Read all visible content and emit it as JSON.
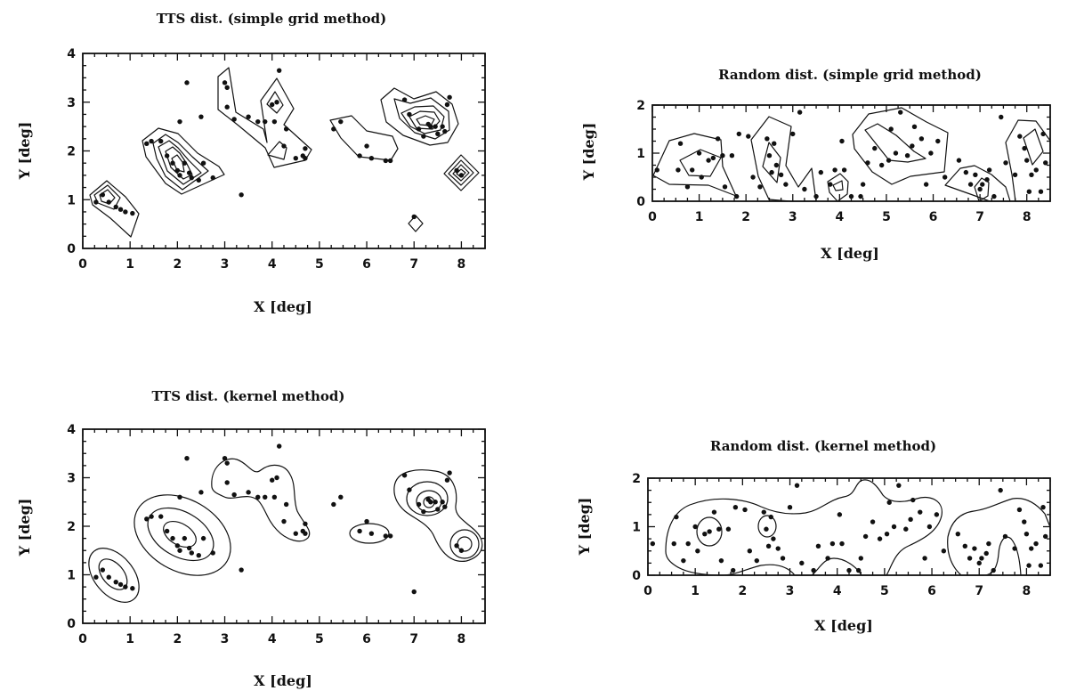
{
  "chart_data": [
    {
      "id": "tts-grid",
      "type": "scatter",
      "title": "TTS dist. (simple grid method)",
      "xlabel": "X [deg]",
      "ylabel": "Y [deg]",
      "xlim": [
        0,
        8.5
      ],
      "ylim": [
        0,
        4
      ],
      "xticks": [
        0,
        1,
        2,
        3,
        4,
        5,
        6,
        7,
        8
      ],
      "yticks": [
        0,
        1,
        2,
        3,
        4
      ],
      "points": [
        [
          0.28,
          0.95
        ],
        [
          0.42,
          1.1
        ],
        [
          0.55,
          0.95
        ],
        [
          0.7,
          0.85
        ],
        [
          0.8,
          0.8
        ],
        [
          0.9,
          0.75
        ],
        [
          1.05,
          0.72
        ],
        [
          1.35,
          2.15
        ],
        [
          1.45,
          2.2
        ],
        [
          1.65,
          2.2
        ],
        [
          1.78,
          1.9
        ],
        [
          1.9,
          1.75
        ],
        [
          2.0,
          1.6
        ],
        [
          2.05,
          1.5
        ],
        [
          2.15,
          1.75
        ],
        [
          2.25,
          1.55
        ],
        [
          2.3,
          1.45
        ],
        [
          2.45,
          1.4
        ],
        [
          2.55,
          1.75
        ],
        [
          2.75,
          1.45
        ],
        [
          2.05,
          2.6
        ],
        [
          2.2,
          3.4
        ],
        [
          2.5,
          2.7
        ],
        [
          3.0,
          3.4
        ],
        [
          3.05,
          3.3
        ],
        [
          3.05,
          2.9
        ],
        [
          3.2,
          2.65
        ],
        [
          3.35,
          1.1
        ],
        [
          3.5,
          2.7
        ],
        [
          3.7,
          2.6
        ],
        [
          3.85,
          2.6
        ],
        [
          4.0,
          2.95
        ],
        [
          4.05,
          2.6
        ],
        [
          4.1,
          3.0
        ],
        [
          4.15,
          3.65
        ],
        [
          4.25,
          2.1
        ],
        [
          4.3,
          2.45
        ],
        [
          4.5,
          1.85
        ],
        [
          4.65,
          1.9
        ],
        [
          4.7,
          2.05
        ],
        [
          4.7,
          1.85
        ],
        [
          5.3,
          2.45
        ],
        [
          5.45,
          2.6
        ],
        [
          5.85,
          1.9
        ],
        [
          6.0,
          2.1
        ],
        [
          6.1,
          1.85
        ],
        [
          6.4,
          1.8
        ],
        [
          6.5,
          1.8
        ],
        [
          6.8,
          3.05
        ],
        [
          6.9,
          2.75
        ],
        [
          7.0,
          0.65
        ],
        [
          7.1,
          2.45
        ],
        [
          7.2,
          2.3
        ],
        [
          7.3,
          2.55
        ],
        [
          7.35,
          2.5
        ],
        [
          7.45,
          2.5
        ],
        [
          7.5,
          2.35
        ],
        [
          7.6,
          2.5
        ],
        [
          7.65,
          2.4
        ],
        [
          7.7,
          2.95
        ],
        [
          7.75,
          3.1
        ],
        [
          7.9,
          1.6
        ],
        [
          8.0,
          1.5
        ]
      ]
    },
    {
      "id": "random-grid",
      "type": "scatter",
      "title": "Random dist. (simple grid method)",
      "xlabel": "X [deg]",
      "ylabel": "Y [deg]",
      "xlim": [
        0,
        8.5
      ],
      "ylim": [
        0,
        2
      ],
      "xticks": [
        0,
        1,
        2,
        3,
        4,
        5,
        6,
        7,
        8
      ],
      "yticks": [
        0,
        1,
        2
      ],
      "points": [
        [
          0.1,
          0.65
        ],
        [
          0.55,
          0.65
        ],
        [
          0.6,
          1.2
        ],
        [
          0.75,
          0.3
        ],
        [
          0.85,
          0.65
        ],
        [
          1.0,
          1.0
        ],
        [
          1.05,
          0.5
        ],
        [
          1.2,
          0.85
        ],
        [
          1.3,
          0.9
        ],
        [
          1.4,
          1.3
        ],
        [
          1.5,
          0.95
        ],
        [
          1.55,
          0.3
        ],
        [
          1.7,
          0.95
        ],
        [
          1.8,
          0.1
        ],
        [
          1.85,
          1.4
        ],
        [
          2.05,
          1.35
        ],
        [
          2.15,
          0.5
        ],
        [
          2.3,
          0.3
        ],
        [
          2.45,
          1.3
        ],
        [
          2.5,
          0.95
        ],
        [
          2.55,
          0.6
        ],
        [
          2.6,
          1.2
        ],
        [
          2.65,
          0.75
        ],
        [
          2.75,
          0.55
        ],
        [
          2.85,
          0.35
        ],
        [
          3.0,
          1.4
        ],
        [
          3.15,
          1.85
        ],
        [
          3.25,
          0.25
        ],
        [
          3.5,
          0.1
        ],
        [
          3.6,
          0.6
        ],
        [
          3.8,
          0.35
        ],
        [
          3.9,
          0.65
        ],
        [
          4.05,
          1.25
        ],
        [
          4.1,
          0.65
        ],
        [
          4.25,
          0.1
        ],
        [
          4.45,
          0.1
        ],
        [
          4.5,
          0.35
        ],
        [
          4.6,
          0.8
        ],
        [
          4.75,
          1.1
        ],
        [
          4.9,
          0.75
        ],
        [
          5.05,
          0.85
        ],
        [
          5.1,
          1.5
        ],
        [
          5.2,
          1.0
        ],
        [
          5.3,
          1.85
        ],
        [
          5.45,
          0.95
        ],
        [
          5.55,
          1.15
        ],
        [
          5.6,
          1.55
        ],
        [
          5.75,
          1.3
        ],
        [
          5.85,
          0.35
        ],
        [
          5.95,
          1.0
        ],
        [
          6.1,
          1.25
        ],
        [
          6.25,
          0.5
        ],
        [
          6.55,
          0.85
        ],
        [
          6.7,
          0.6
        ],
        [
          6.8,
          0.35
        ],
        [
          6.9,
          0.55
        ],
        [
          7.0,
          0.25
        ],
        [
          7.05,
          0.35
        ],
        [
          7.15,
          0.45
        ],
        [
          7.2,
          0.65
        ],
        [
          7.3,
          0.1
        ],
        [
          7.45,
          1.75
        ],
        [
          7.55,
          0.8
        ],
        [
          7.75,
          0.55
        ],
        [
          7.85,
          1.35
        ],
        [
          7.95,
          1.1
        ],
        [
          8.0,
          0.85
        ],
        [
          8.05,
          0.2
        ],
        [
          8.1,
          0.55
        ],
        [
          8.2,
          0.65
        ],
        [
          8.3,
          0.2
        ],
        [
          8.35,
          1.4
        ],
        [
          8.4,
          0.8
        ]
      ]
    },
    {
      "id": "tts-kernel",
      "type": "scatter",
      "title": "TTS dist. (kernel method)",
      "xlabel": "X [deg]",
      "ylabel": "Y [deg]",
      "xlim": [
        0,
        8.5
      ],
      "ylim": [
        0,
        4
      ],
      "xticks": [
        0,
        1,
        2,
        3,
        4,
        5,
        6,
        7,
        8
      ],
      "yticks": [
        0,
        1,
        2,
        3,
        4
      ],
      "points": [
        [
          0.28,
          0.95
        ],
        [
          0.42,
          1.1
        ],
        [
          0.55,
          0.95
        ],
        [
          0.7,
          0.85
        ],
        [
          0.8,
          0.8
        ],
        [
          0.9,
          0.75
        ],
        [
          1.05,
          0.72
        ],
        [
          1.35,
          2.15
        ],
        [
          1.45,
          2.2
        ],
        [
          1.65,
          2.2
        ],
        [
          1.78,
          1.9
        ],
        [
          1.9,
          1.75
        ],
        [
          2.0,
          1.6
        ],
        [
          2.05,
          1.5
        ],
        [
          2.15,
          1.75
        ],
        [
          2.25,
          1.55
        ],
        [
          2.3,
          1.45
        ],
        [
          2.45,
          1.4
        ],
        [
          2.55,
          1.75
        ],
        [
          2.75,
          1.45
        ],
        [
          2.05,
          2.6
        ],
        [
          2.2,
          3.4
        ],
        [
          2.5,
          2.7
        ],
        [
          3.0,
          3.4
        ],
        [
          3.05,
          3.3
        ],
        [
          3.05,
          2.9
        ],
        [
          3.2,
          2.65
        ],
        [
          3.35,
          1.1
        ],
        [
          3.5,
          2.7
        ],
        [
          3.7,
          2.6
        ],
        [
          3.85,
          2.6
        ],
        [
          4.0,
          2.95
        ],
        [
          4.05,
          2.6
        ],
        [
          4.1,
          3.0
        ],
        [
          4.15,
          3.65
        ],
        [
          4.25,
          2.1
        ],
        [
          4.3,
          2.45
        ],
        [
          4.5,
          1.85
        ],
        [
          4.65,
          1.9
        ],
        [
          4.7,
          2.05
        ],
        [
          4.7,
          1.85
        ],
        [
          5.3,
          2.45
        ],
        [
          5.45,
          2.6
        ],
        [
          5.85,
          1.9
        ],
        [
          6.0,
          2.1
        ],
        [
          6.1,
          1.85
        ],
        [
          6.4,
          1.8
        ],
        [
          6.5,
          1.8
        ],
        [
          6.8,
          3.05
        ],
        [
          6.9,
          2.75
        ],
        [
          7.0,
          0.65
        ],
        [
          7.1,
          2.45
        ],
        [
          7.2,
          2.3
        ],
        [
          7.3,
          2.55
        ],
        [
          7.35,
          2.5
        ],
        [
          7.45,
          2.5
        ],
        [
          7.5,
          2.35
        ],
        [
          7.6,
          2.5
        ],
        [
          7.65,
          2.4
        ],
        [
          7.7,
          2.95
        ],
        [
          7.75,
          3.1
        ],
        [
          7.9,
          1.6
        ],
        [
          8.0,
          1.5
        ]
      ]
    },
    {
      "id": "random-kernel",
      "type": "scatter",
      "title": "Random dist. (kernel method)",
      "xlabel": "X [deg]",
      "ylabel": "Y [deg]",
      "xlim": [
        0,
        8.5
      ],
      "ylim": [
        0,
        2
      ],
      "xticks": [
        0,
        1,
        2,
        3,
        4,
        5,
        6,
        7,
        8
      ],
      "yticks": [
        0,
        1,
        2
      ],
      "points": [
        [
          0.1,
          0.65
        ],
        [
          0.55,
          0.65
        ],
        [
          0.6,
          1.2
        ],
        [
          0.75,
          0.3
        ],
        [
          0.85,
          0.65
        ],
        [
          1.0,
          1.0
        ],
        [
          1.05,
          0.5
        ],
        [
          1.2,
          0.85
        ],
        [
          1.3,
          0.9
        ],
        [
          1.4,
          1.3
        ],
        [
          1.5,
          0.95
        ],
        [
          1.55,
          0.3
        ],
        [
          1.7,
          0.95
        ],
        [
          1.8,
          0.1
        ],
        [
          1.85,
          1.4
        ],
        [
          2.05,
          1.35
        ],
        [
          2.15,
          0.5
        ],
        [
          2.3,
          0.3
        ],
        [
          2.45,
          1.3
        ],
        [
          2.5,
          0.95
        ],
        [
          2.55,
          0.6
        ],
        [
          2.6,
          1.2
        ],
        [
          2.65,
          0.75
        ],
        [
          2.75,
          0.55
        ],
        [
          2.85,
          0.35
        ],
        [
          3.0,
          1.4
        ],
        [
          3.15,
          1.85
        ],
        [
          3.25,
          0.25
        ],
        [
          3.5,
          0.1
        ],
        [
          3.6,
          0.6
        ],
        [
          3.8,
          0.35
        ],
        [
          3.9,
          0.65
        ],
        [
          4.05,
          1.25
        ],
        [
          4.1,
          0.65
        ],
        [
          4.25,
          0.1
        ],
        [
          4.45,
          0.1
        ],
        [
          4.5,
          0.35
        ],
        [
          4.6,
          0.8
        ],
        [
          4.75,
          1.1
        ],
        [
          4.9,
          0.75
        ],
        [
          5.05,
          0.85
        ],
        [
          5.1,
          1.5
        ],
        [
          5.2,
          1.0
        ],
        [
          5.3,
          1.85
        ],
        [
          5.45,
          0.95
        ],
        [
          5.55,
          1.15
        ],
        [
          5.6,
          1.55
        ],
        [
          5.75,
          1.3
        ],
        [
          5.85,
          0.35
        ],
        [
          5.95,
          1.0
        ],
        [
          6.1,
          1.25
        ],
        [
          6.25,
          0.5
        ],
        [
          6.55,
          0.85
        ],
        [
          6.7,
          0.6
        ],
        [
          6.8,
          0.35
        ],
        [
          6.9,
          0.55
        ],
        [
          7.0,
          0.25
        ],
        [
          7.05,
          0.35
        ],
        [
          7.15,
          0.45
        ],
        [
          7.2,
          0.65
        ],
        [
          7.3,
          0.1
        ],
        [
          7.45,
          1.75
        ],
        [
          7.55,
          0.8
        ],
        [
          7.75,
          0.55
        ],
        [
          7.85,
          1.35
        ],
        [
          7.95,
          1.1
        ],
        [
          8.0,
          0.85
        ],
        [
          8.05,
          0.2
        ],
        [
          8.1,
          0.55
        ],
        [
          8.2,
          0.65
        ],
        [
          8.3,
          0.2
        ],
        [
          8.35,
          1.4
        ],
        [
          8.4,
          0.8
        ]
      ]
    }
  ]
}
